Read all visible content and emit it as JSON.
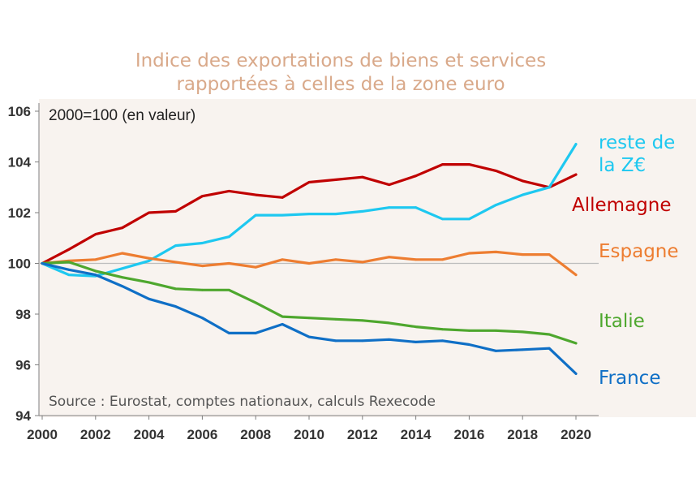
{
  "chart_data": {
    "type": "line",
    "title": [
      "Indice des exportations de biens et services",
      "rapportées à celles de la zone euro"
    ],
    "unit_note": "2000=100 (en valeur)",
    "source": "Source : Eurostat, comptes nationaux, calculs Rexecode",
    "xlabel": "",
    "ylabel": "",
    "xlim": [
      2000,
      2021
    ],
    "ylim": [
      94,
      106
    ],
    "x_ticks": [
      2000,
      2002,
      2004,
      2006,
      2008,
      2010,
      2012,
      2014,
      2016,
      2018,
      2020
    ],
    "y_ticks": [
      94,
      96,
      98,
      100,
      102,
      104,
      106
    ],
    "reference_line": 100,
    "x": [
      2000,
      2001,
      2002,
      2003,
      2004,
      2005,
      2006,
      2007,
      2008,
      2009,
      2010,
      2011,
      2012,
      2013,
      2014,
      2015,
      2016,
      2017,
      2018,
      2019,
      2020
    ],
    "series": [
      {
        "name": "Allemagne",
        "color": "#C00000",
        "values": [
          100,
          100.55,
          101.15,
          101.4,
          102.0,
          102.05,
          102.65,
          102.85,
          102.7,
          102.6,
          103.2,
          103.3,
          103.4,
          103.1,
          103.45,
          103.9,
          103.9,
          103.65,
          103.25,
          103.0,
          103.5
        ]
      },
      {
        "name": "reste de la Z€",
        "label_lines": [
          "reste de",
          "la Z€"
        ],
        "color": "#1EC8F0",
        "values": [
          100,
          99.55,
          99.5,
          99.8,
          100.1,
          100.7,
          100.8,
          101.05,
          101.9,
          101.9,
          101.95,
          101.95,
          102.05,
          102.2,
          102.2,
          101.75,
          101.75,
          102.3,
          102.7,
          103.0,
          104.7
        ]
      },
      {
        "name": "Espagne",
        "color": "#ED7D31",
        "values": [
          100,
          100.1,
          100.15,
          100.4,
          100.2,
          100.05,
          99.9,
          100.0,
          99.85,
          100.15,
          100.0,
          100.15,
          100.05,
          100.25,
          100.15,
          100.15,
          100.4,
          100.45,
          100.35,
          100.35,
          99.55
        ]
      },
      {
        "name": "Italie",
        "color": "#4EA72E",
        "values": [
          100,
          100.05,
          99.7,
          99.45,
          99.25,
          99.0,
          98.95,
          98.95,
          98.45,
          97.9,
          97.85,
          97.8,
          97.75,
          97.65,
          97.5,
          97.4,
          97.35,
          97.35,
          97.3,
          97.2,
          96.85
        ]
      },
      {
        "name": "France",
        "color": "#0F6FC6",
        "values": [
          100,
          99.75,
          99.55,
          99.1,
          98.6,
          98.3,
          97.85,
          97.25,
          97.25,
          97.6,
          97.1,
          96.95,
          96.95,
          97.0,
          96.9,
          96.95,
          96.8,
          96.55,
          96.6,
          96.65,
          95.65
        ]
      }
    ]
  }
}
